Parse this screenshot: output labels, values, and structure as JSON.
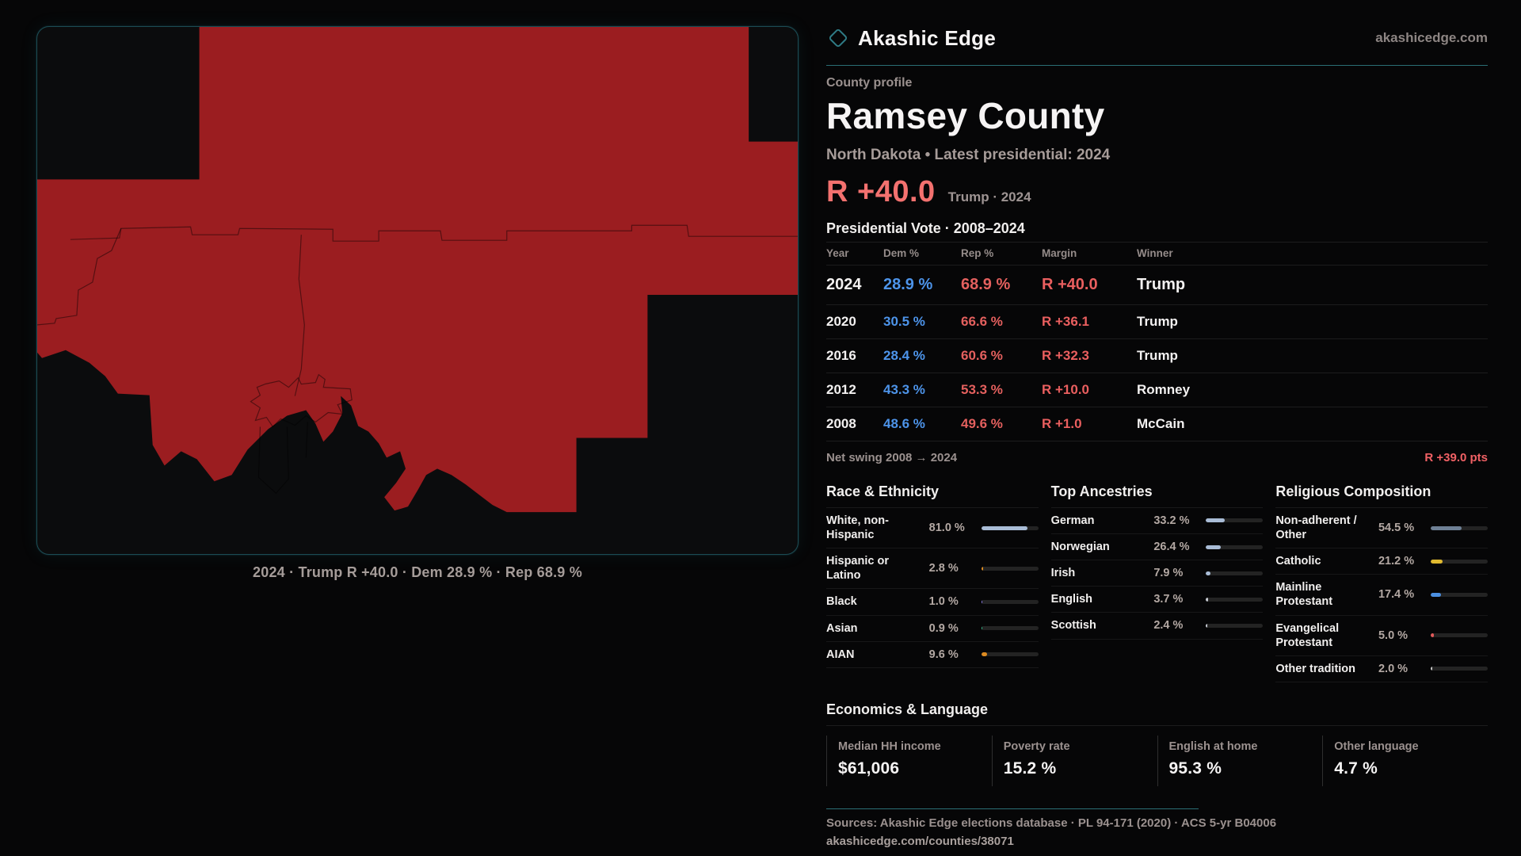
{
  "header": {
    "brand": "Akashic Edge",
    "site": "akashicedge.com"
  },
  "icons": {
    "brand": "diamond-outline"
  },
  "profile": {
    "kicker": "County profile",
    "title": "Ramsey County",
    "subtitle": "North Dakota • Latest presidential: 2024",
    "headline_margin": "R +40.0",
    "headline_context": "Trump · 2024",
    "table_title": "Presidential Vote · 2008–2024"
  },
  "vote_table": {
    "columns": [
      "Year",
      "Dem %",
      "Rep %",
      "Margin",
      "Winner"
    ],
    "rows": [
      {
        "year": "2024",
        "dem": "28.9 %",
        "rep": "68.9 %",
        "margin": "R +40.0",
        "winner": "Trump"
      },
      {
        "year": "2020",
        "dem": "30.5 %",
        "rep": "66.6 %",
        "margin": "R +36.1",
        "winner": "Trump"
      },
      {
        "year": "2016",
        "dem": "28.4 %",
        "rep": "60.6 %",
        "margin": "R +32.3",
        "winner": "Trump"
      },
      {
        "year": "2012",
        "dem": "43.3 %",
        "rep": "53.3 %",
        "margin": "R +10.0",
        "winner": "Romney"
      },
      {
        "year": "2008",
        "dem": "48.6 %",
        "rep": "49.6 %",
        "margin": "R +1.0",
        "winner": "McCain"
      }
    ]
  },
  "net_swing": {
    "label": "Net swing 2008 → 2024",
    "value": "R +39.0 pts"
  },
  "breakdowns": [
    {
      "title": "Race & Ethnicity",
      "rows": [
        {
          "label": "White, non-Hispanic",
          "display": "81.0 %",
          "value": 81.0,
          "color": "#a9bcd6"
        },
        {
          "label": "Hispanic or Latino",
          "display": "2.8 %",
          "value": 2.8,
          "color": "#dd8b21"
        },
        {
          "label": "Black",
          "display": "1.0 %",
          "value": 1.0,
          "color": "#8b7ce6"
        },
        {
          "label": "Asian",
          "display": "0.9 %",
          "value": 0.9,
          "color": "#35b98c"
        },
        {
          "label": "AIAN",
          "display": "9.6 %",
          "value": 9.6,
          "color": "#dd8b21"
        }
      ]
    },
    {
      "title": "Top Ancestries",
      "rows": [
        {
          "label": "German",
          "display": "33.2 %",
          "value": 33.2,
          "color": "#a9bcd6"
        },
        {
          "label": "Norwegian",
          "display": "26.4 %",
          "value": 26.4,
          "color": "#a9bcd6"
        },
        {
          "label": "Irish",
          "display": "7.9 %",
          "value": 7.9,
          "color": "#a9bcd6"
        },
        {
          "label": "English",
          "display": "3.7 %",
          "value": 3.7,
          "color": "#c8ccd4"
        },
        {
          "label": "Scottish",
          "display": "2.4 %",
          "value": 2.4,
          "color": "#c8ccd4"
        }
      ]
    },
    {
      "title": "Religious Composition",
      "rows": [
        {
          "label": "Non-adherent / Other",
          "display": "54.5 %",
          "value": 54.5,
          "color": "#6e8095"
        },
        {
          "label": "Catholic",
          "display": "21.2 %",
          "value": 21.2,
          "color": "#e0ba30"
        },
        {
          "label": "Mainline Protestant",
          "display": "17.4 %",
          "value": 17.4,
          "color": "#4b90e2"
        },
        {
          "label": "Evangelical Protestant",
          "display": "5.0 %",
          "value": 5.0,
          "color": "#e25a5a"
        },
        {
          "label": "Other tradition",
          "display": "2.0 %",
          "value": 2.0,
          "color": "#c9c9c9"
        }
      ]
    }
  ],
  "economics": {
    "title": "Economics & Language",
    "stats": [
      {
        "label": "Median HH income",
        "value": "$61,006"
      },
      {
        "label": "Poverty rate",
        "value": "15.2 %"
      },
      {
        "label": "English at home",
        "value": "95.3 %"
      },
      {
        "label": "Other language",
        "value": "4.7 %"
      }
    ]
  },
  "map": {
    "caption": "2024 · Trump R +40.0 · Dem 28.9 % · Rep 68.9 %"
  },
  "footer": {
    "sources": "Sources: Akashic Edge elections database · PL 94-171 (2020) · ACS 5-yr B04006",
    "url": "akashicedge.com/counties/38071"
  },
  "colors": {
    "accent_teal": "#2a6e75",
    "dem_blue": "#4d94ea",
    "rep_red": "#e4605e",
    "headline_coral": "#f3716f",
    "map_fill_red": "#9b1d20"
  }
}
